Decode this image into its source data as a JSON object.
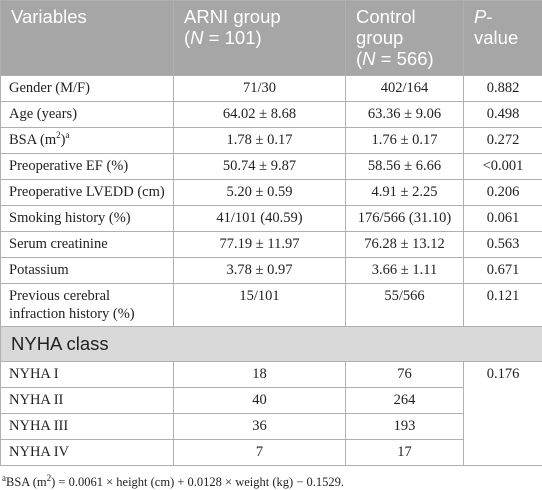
{
  "table": {
    "header": [
      [
        [
          {
            "t": "Variables"
          }
        ]
      ],
      [
        [
          {
            "t": "ARNI group"
          }
        ],
        [
          {
            "t": "("
          },
          {
            "t": "N",
            "i": true
          },
          {
            "t": " = 101)"
          }
        ]
      ],
      [
        [
          {
            "t": "Control group"
          }
        ],
        [
          {
            "t": "("
          },
          {
            "t": "N",
            "i": true
          },
          {
            "t": " = 566)"
          }
        ]
      ],
      [
        [
          {
            "t": "P",
            "i": true
          },
          {
            "t": "-"
          }
        ],
        [
          {
            "t": "value"
          }
        ]
      ]
    ],
    "rows": [
      [
        "Gender (M/F)",
        "71/30",
        "402/164",
        "0.882"
      ],
      [
        "Age (years)",
        "64.02 ± 8.68",
        "63.36 ± 9.06",
        "0.498"
      ],
      [
        [
          {
            "t": "BSA (m"
          },
          {
            "t": "2",
            "sup": true
          },
          {
            "t": ")"
          },
          {
            "t": "a",
            "sup": true
          }
        ],
        "1.78 ± 0.17",
        "1.76 ± 0.17",
        "0.272"
      ],
      [
        "Preoperative EF (%)",
        "50.74 ± 9.87",
        "58.56 ± 6.66",
        "<0.001"
      ],
      [
        "Preoperative LVEDD (cm)",
        "5.20 ± 0.59",
        "4.91 ± 2.25",
        "0.206"
      ],
      [
        "Smoking history (%)",
        "41/101 (40.59)",
        "176/566 (31.10)",
        "0.061"
      ],
      [
        "Serum creatinine",
        "77.19 ± 11.97",
        "76.28 ± 13.12",
        "0.563"
      ],
      [
        "Potassium",
        "3.78 ± 0.97",
        "3.66 ± 1.11",
        "0.671"
      ],
      [
        "Previous cerebral infraction history (%)",
        "15/101",
        "55/566",
        "0.121"
      ]
    ],
    "section": {
      "title": "NYHA class",
      "p_value": "0.176",
      "rows": [
        [
          "NYHA I",
          "18",
          "76"
        ],
        [
          "NYHA II",
          "40",
          "264"
        ],
        [
          "NYHA III",
          "36",
          "193"
        ],
        [
          "NYHA IV",
          "7",
          "17"
        ]
      ]
    },
    "footnote": [
      {
        "t": "a",
        "sup": true
      },
      {
        "t": "BSA (m"
      },
      {
        "t": "2",
        "sup": true
      },
      {
        "t": ") = 0.0061 × height (cm) + 0.0128 × weight (kg) − 0.1529."
      }
    ]
  }
}
